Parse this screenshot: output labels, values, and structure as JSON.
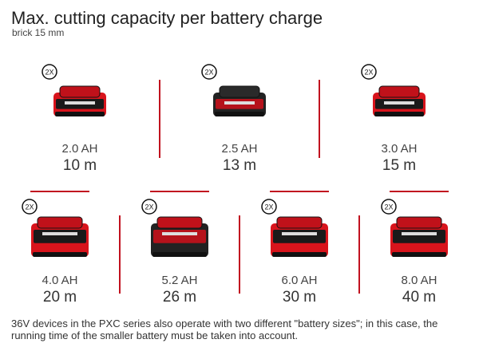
{
  "header": {
    "title": "Max. cutting capacity per battery charge",
    "subtitle": "brick 15 mm"
  },
  "batteries": [
    {
      "badge": "2X",
      "capacity": "2.0 AH",
      "cutting": "10 m"
    },
    {
      "badge": "2X",
      "capacity": "2.5 AH",
      "cutting": "13 m"
    },
    {
      "badge": "2X",
      "capacity": "3.0 AH",
      "cutting": "15 m"
    },
    {
      "badge": "2X",
      "capacity": "4.0 AH",
      "cutting": "20 m"
    },
    {
      "badge": "2X",
      "capacity": "5.2 AH",
      "cutting": "26 m"
    },
    {
      "badge": "2X",
      "capacity": "6.0 AH",
      "cutting": "30 m"
    },
    {
      "badge": "2X",
      "capacity": "8.0 AH",
      "cutting": "40 m"
    }
  ],
  "footnote": "36V devices in the PXC series also operate with two different \"battery sizes\"; in this case, the running time of the smaller battery must be taken into account."
}
